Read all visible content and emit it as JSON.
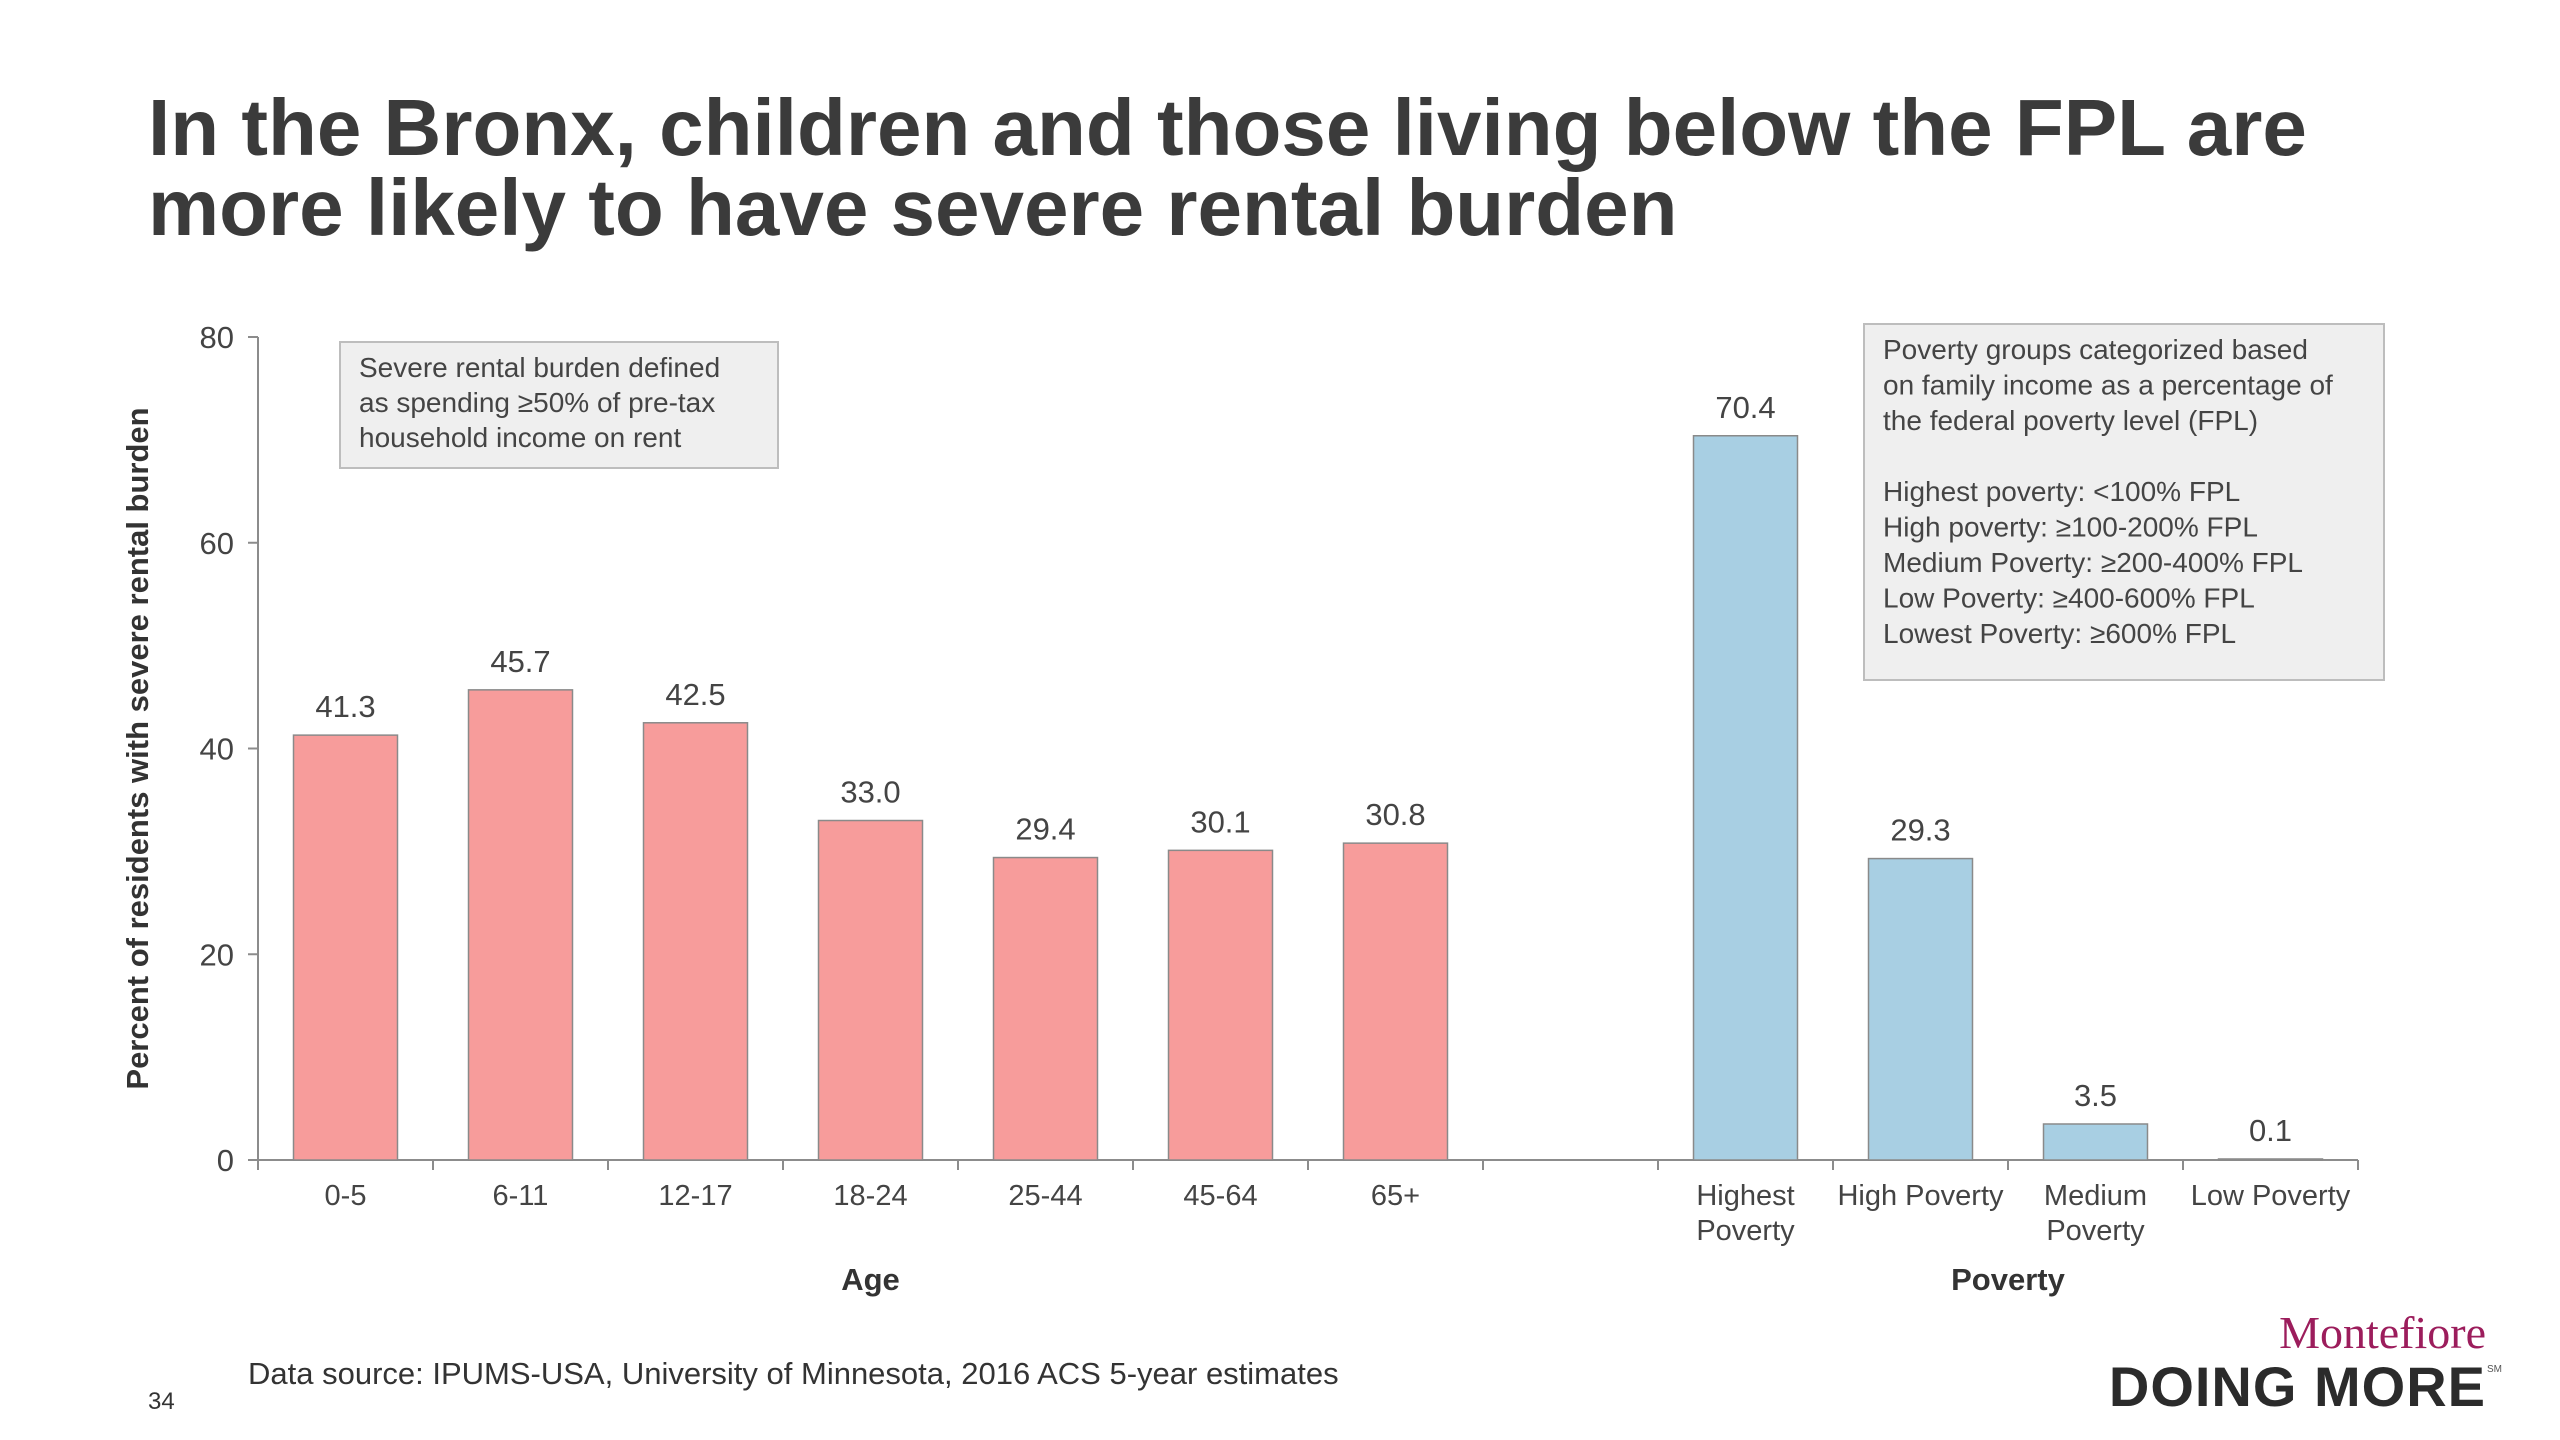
{
  "slide": {
    "title_line1": "In the Bronx, children and those living below the FPL are",
    "title_line2": "more likely to have severe rental burden",
    "source": "Data source: IPUMS-USA, University of Minnesota, 2016 ACS 5-year estimates",
    "page_number": "34",
    "logo_top": "Montefiore",
    "logo_bottom": "DOING MORE",
    "logo_mark": "SM"
  },
  "colors": {
    "age_bar": "#f79c9b",
    "poverty_bar": "#a8cfe3",
    "bar_outline": "#8a8a8a",
    "axis": "#8c8c8c",
    "note_box_fill": "#efefef",
    "note_box_border": "#bdbdbd",
    "logo_top": "#9c1d5c"
  },
  "chart_data": {
    "type": "bar",
    "ylabel": "Percent of residents with severe rental burden",
    "ylim": [
      0,
      80
    ],
    "yticks": [
      0,
      20,
      40,
      60,
      80
    ],
    "grid": false,
    "groups": [
      {
        "name": "Age",
        "color": "#f79c9b",
        "categories": [
          "0-5",
          "6-11",
          "12-17",
          "18-24",
          "25-44",
          "45-64",
          "65+"
        ],
        "values": [
          41.3,
          45.7,
          42.5,
          33.0,
          29.4,
          30.1,
          30.8
        ],
        "labels": [
          "41.3",
          "45.7",
          "42.5",
          "33.0",
          "29.4",
          "30.1",
          "30.8"
        ]
      },
      {
        "name": "Poverty",
        "color": "#a8cfe3",
        "categories": [
          [
            "Highest",
            "Poverty"
          ],
          [
            "High Poverty"
          ],
          [
            "Medium",
            "Poverty"
          ],
          [
            "Low Poverty"
          ]
        ],
        "values": [
          70.4,
          29.3,
          3.5,
          0.1
        ],
        "labels": [
          "70.4",
          "29.3",
          "3.5",
          "0.1"
        ]
      }
    ],
    "annotations": [
      {
        "position": "top-left",
        "lines": [
          "Severe rental burden defined",
          "as spending ≥50% of pre-tax",
          "household income on rent"
        ]
      },
      {
        "position": "top-right",
        "lines": [
          "Poverty groups categorized based",
          "on family income as a percentage of",
          "the federal poverty level (FPL)",
          "",
          "Highest poverty: <100% FPL",
          "High poverty: ≥100-200% FPL",
          "Medium Poverty: ≥200-400% FPL",
          "Low Poverty: ≥400-600% FPL",
          "Lowest Poverty: ≥600% FPL"
        ]
      }
    ]
  }
}
